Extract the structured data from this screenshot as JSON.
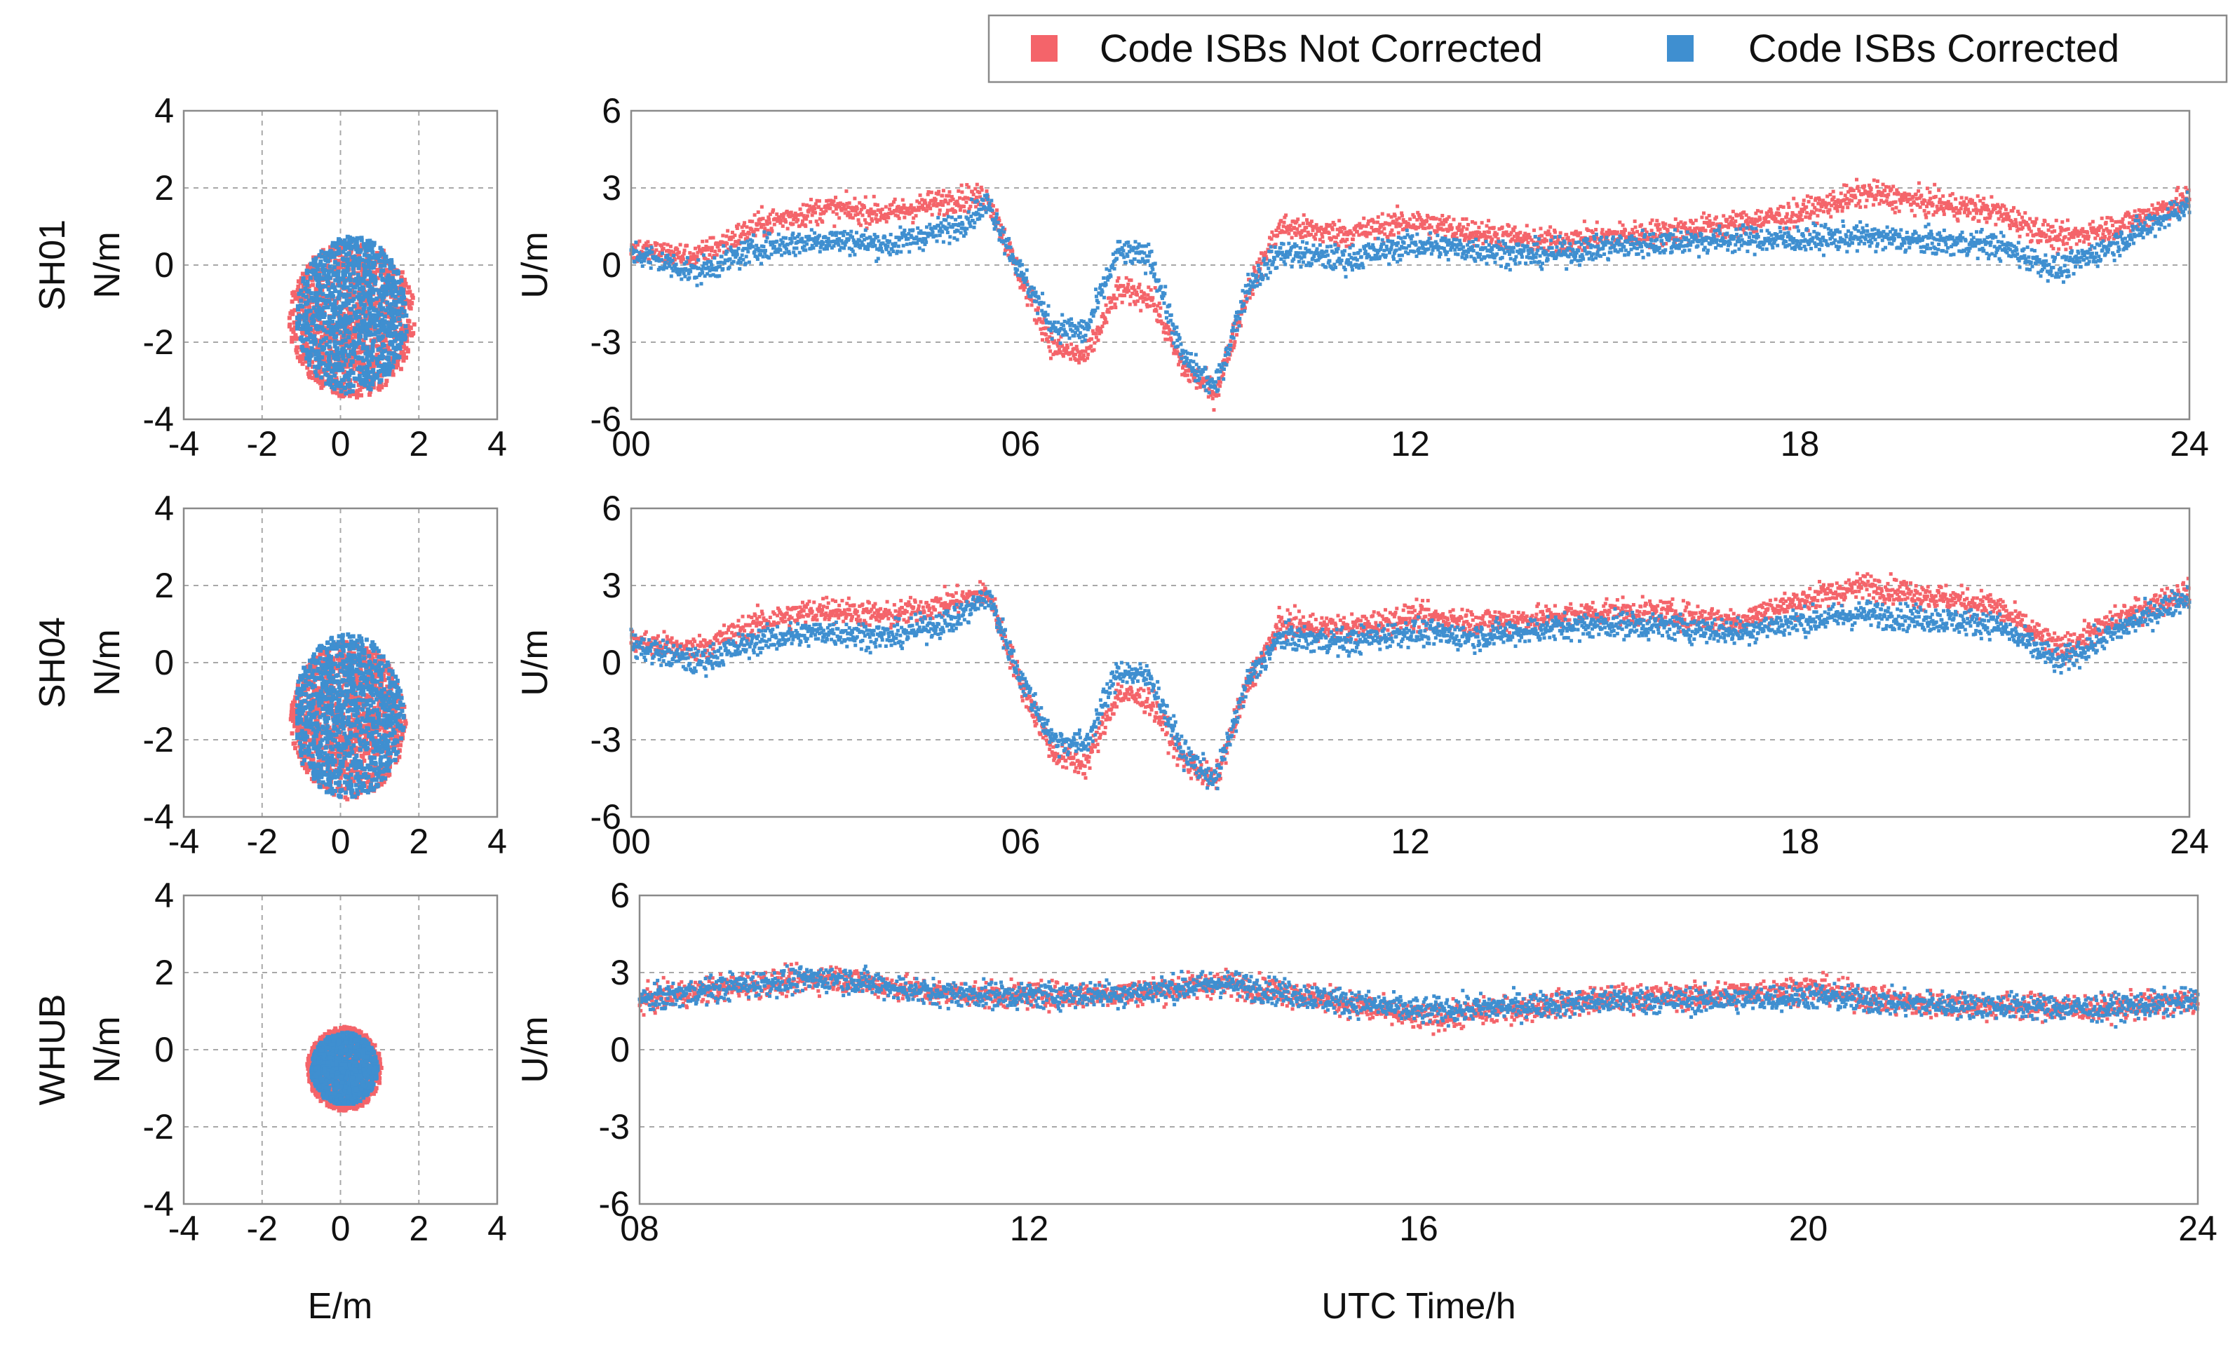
{
  "legend": {
    "items": [
      {
        "label": "Code ISBs Not Corrected",
        "color": "#f4646a"
      },
      {
        "label": "Code ISBs Corrected",
        "color": "#3f8fd0"
      }
    ]
  },
  "colors": {
    "not_corrected": "#f4646a",
    "corrected": "#3f8fd0"
  },
  "chart_data": [
    {
      "type": "scatter",
      "station": "SH01",
      "panel": "horizontal",
      "xlabel": "E/m",
      "ylabel": "N/m",
      "xlim": [
        -4,
        4
      ],
      "ylim": [
        -4,
        4
      ],
      "xticks": [
        "-4",
        "-2",
        "0",
        "2",
        "4"
      ],
      "yticks": [
        "-4",
        "-2",
        "0",
        "2",
        "4"
      ],
      "series": [
        {
          "name": "Code ISBs Not Corrected",
          "center": [
            0.3,
            -1.4
          ],
          "extent": {
            "e": [
              -1.3,
              2.1
            ],
            "n": [
              -3.7,
              0.6
            ]
          }
        },
        {
          "name": "Code ISBs Corrected",
          "center": [
            0.3,
            -1.3
          ],
          "extent": {
            "e": [
              -1.1,
              1.9
            ],
            "n": [
              -3.5,
              0.8
            ]
          }
        }
      ]
    },
    {
      "type": "scatter",
      "station": "SH01",
      "panel": "up",
      "xlabel": "",
      "ylabel": "U/m",
      "xlim": [
        0,
        24
      ],
      "ylim": [
        -6,
        6
      ],
      "xticks": [
        "00",
        "06",
        "12",
        "18",
        "24"
      ],
      "yticks": [
        "-6",
        "-3",
        "0",
        "3",
        "6"
      ],
      "series": [
        {
          "name": "Code ISBs Not Corrected",
          "x": [
            0,
            1,
            2,
            3,
            4,
            5,
            5.5,
            6,
            6.5,
            7,
            7.5,
            8,
            8.5,
            9,
            9.5,
            10,
            11,
            12,
            13,
            14,
            15,
            16,
            17,
            18,
            19,
            20,
            21,
            22,
            23,
            24
          ],
          "y": [
            0.6,
            0.3,
            1.6,
            2.2,
            2.0,
            2.6,
            2.6,
            -0.5,
            -3.2,
            -3.6,
            -1.0,
            -1.2,
            -4.0,
            -5.0,
            -1.0,
            1.5,
            1.2,
            1.7,
            1.3,
            0.9,
            1.1,
            1.3,
            1.6,
            2.0,
            2.8,
            2.4,
            2.1,
            1.0,
            1.6,
            2.6
          ]
        },
        {
          "name": "Code ISBs Corrected",
          "x": [
            0,
            1,
            2,
            3,
            4,
            5,
            5.5,
            6,
            6.5,
            7,
            7.5,
            8,
            8.5,
            9,
            9.5,
            10,
            11,
            12,
            13,
            14,
            15,
            16,
            17,
            18,
            19,
            20,
            21,
            22,
            23,
            24
          ],
          "y": [
            0.5,
            -0.3,
            0.7,
            1.0,
            0.8,
            1.5,
            2.4,
            -0.3,
            -2.4,
            -2.6,
            0.5,
            0.3,
            -3.6,
            -4.8,
            -0.8,
            0.5,
            0.2,
            0.8,
            0.6,
            0.4,
            0.7,
            0.9,
            1.0,
            1.0,
            1.1,
            0.9,
            0.8,
            -0.2,
            1.0,
            2.4
          ]
        }
      ]
    },
    {
      "type": "scatter",
      "station": "SH04",
      "panel": "horizontal",
      "xlabel": "",
      "ylabel": "N/m",
      "xlim": [
        -4,
        4
      ],
      "ylim": [
        -4,
        4
      ],
      "xticks": [
        "-4",
        "-2",
        "0",
        "2",
        "4"
      ],
      "yticks": [
        "-4",
        "-2",
        "0",
        "2",
        "4"
      ],
      "series": [
        {
          "name": "Code ISBs Not Corrected",
          "center": [
            0.2,
            -1.5
          ],
          "extent": {
            "e": [
              -1.3,
              1.8
            ],
            "n": [
              -3.7,
              0.6
            ]
          }
        },
        {
          "name": "Code ISBs Corrected",
          "center": [
            0.2,
            -1.4
          ],
          "extent": {
            "e": [
              -1.1,
              1.9
            ],
            "n": [
              -3.6,
              0.9
            ]
          }
        }
      ]
    },
    {
      "type": "scatter",
      "station": "SH04",
      "panel": "up",
      "xlabel": "",
      "ylabel": "U/m",
      "xlim": [
        0,
        24
      ],
      "ylim": [
        -6,
        6
      ],
      "xticks": [
        "00",
        "06",
        "12",
        "18",
        "24"
      ],
      "yticks": [
        "-6",
        "-3",
        "0",
        "3",
        "6"
      ],
      "series": [
        {
          "name": "Code ISBs Not Corrected",
          "x": [
            0,
            1,
            2,
            3,
            4,
            5,
            5.5,
            6,
            6.5,
            7,
            7.5,
            8,
            8.5,
            9,
            9.5,
            10,
            11,
            12,
            13,
            14,
            15,
            16,
            17,
            18,
            19,
            20,
            21,
            22,
            23,
            24
          ],
          "y": [
            0.8,
            0.5,
            1.6,
            2.1,
            1.8,
            2.4,
            2.7,
            -0.8,
            -3.5,
            -4.0,
            -1.2,
            -1.5,
            -3.8,
            -4.6,
            -0.8,
            1.5,
            1.3,
            1.8,
            1.6,
            1.7,
            2.0,
            1.9,
            1.6,
            2.4,
            3.0,
            2.6,
            2.2,
            0.5,
            1.8,
            2.8
          ]
        },
        {
          "name": "Code ISBs Corrected",
          "x": [
            0,
            1,
            2,
            3,
            4,
            5,
            5.5,
            6,
            6.5,
            7,
            7.5,
            8,
            8.5,
            9,
            9.5,
            10,
            11,
            12,
            13,
            14,
            15,
            16,
            17,
            18,
            19,
            20,
            21,
            22,
            23,
            24
          ],
          "y": [
            0.7,
            0.0,
            0.9,
            1.2,
            1.0,
            1.7,
            2.6,
            -0.6,
            -3.0,
            -3.2,
            -0.3,
            -0.6,
            -3.5,
            -4.6,
            -0.7,
            1.0,
            0.8,
            1.2,
            1.0,
            1.3,
            1.5,
            1.4,
            1.2,
            1.6,
            1.9,
            1.7,
            1.5,
            0.0,
            1.4,
            2.6
          ]
        }
      ]
    },
    {
      "type": "scatter",
      "station": "WHUB",
      "panel": "horizontal",
      "xlabel": "E/m",
      "ylabel": "N/m",
      "xlim": [
        -4,
        4
      ],
      "ylim": [
        -4,
        4
      ],
      "xticks": [
        "-4",
        "-2",
        "0",
        "2",
        "4"
      ],
      "yticks": [
        "-4",
        "-2",
        "0",
        "2",
        "4"
      ],
      "series": [
        {
          "name": "Code ISBs Not Corrected",
          "center": [
            0.1,
            -0.5
          ],
          "extent": {
            "e": [
              -0.9,
              1.1
            ],
            "n": [
              -1.6,
              0.7
            ]
          }
        },
        {
          "name": "Code ISBs Corrected",
          "center": [
            0.1,
            -0.5
          ],
          "extent": {
            "e": [
              -0.8,
              1.0
            ],
            "n": [
              -1.4,
              0.6
            ]
          }
        }
      ]
    },
    {
      "type": "scatter",
      "station": "WHUB",
      "panel": "up",
      "xlabel": "UTC Time/h",
      "ylabel": "U/m",
      "xlim": [
        8,
        24
      ],
      "ylim": [
        -6,
        6
      ],
      "xticks": [
        "08",
        "12",
        "16",
        "20",
        "24"
      ],
      "yticks": [
        "-6",
        "-3",
        "0",
        "3",
        "6"
      ],
      "series": [
        {
          "name": "Code ISBs Not Corrected",
          "x": [
            8,
            9,
            10,
            11,
            12,
            13,
            14,
            15,
            16,
            17,
            18,
            19,
            20,
            21,
            22,
            23,
            24
          ],
          "y": [
            1.9,
            2.5,
            2.8,
            2.2,
            2.1,
            2.2,
            2.6,
            2.0,
            1.2,
            1.6,
            2.0,
            2.1,
            2.4,
            1.8,
            1.7,
            1.6,
            1.9
          ]
        },
        {
          "name": "Code ISBs Corrected",
          "x": [
            8,
            9,
            10,
            11,
            12,
            13,
            14,
            15,
            16,
            17,
            18,
            19,
            20,
            21,
            22,
            23,
            24
          ],
          "y": [
            1.9,
            2.5,
            2.8,
            2.2,
            2.1,
            2.2,
            2.6,
            2.0,
            1.5,
            1.7,
            1.9,
            1.9,
            2.1,
            1.8,
            1.7,
            1.6,
            1.9
          ]
        }
      ]
    }
  ]
}
